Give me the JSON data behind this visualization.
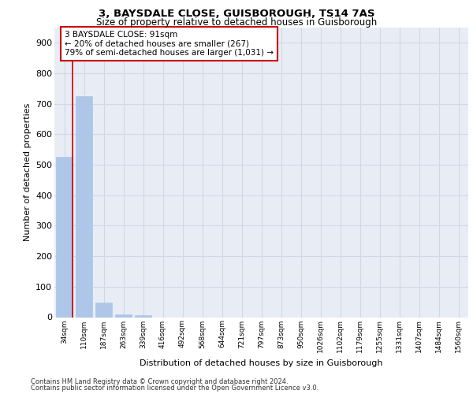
{
  "title1": "3, BAYSDALE CLOSE, GUISBOROUGH, TS14 7AS",
  "title2": "Size of property relative to detached houses in Guisborough",
  "xlabel": "Distribution of detached houses by size in Guisborough",
  "ylabel": "Number of detached properties",
  "categories": [
    "34sqm",
    "110sqm",
    "187sqm",
    "263sqm",
    "339sqm",
    "416sqm",
    "492sqm",
    "568sqm",
    "644sqm",
    "721sqm",
    "797sqm",
    "873sqm",
    "950sqm",
    "1026sqm",
    "1102sqm",
    "1179sqm",
    "1255sqm",
    "1331sqm",
    "1407sqm",
    "1484sqm",
    "1560sqm"
  ],
  "values": [
    527,
    725,
    47,
    8,
    6,
    0,
    0,
    0,
    0,
    0,
    0,
    0,
    0,
    0,
    0,
    0,
    0,
    0,
    0,
    0,
    0
  ],
  "bar_color": "#aec6e8",
  "bar_edge_color": "#aec6e8",
  "grid_color": "#d0d8e8",
  "bg_color": "#e8edf5",
  "annotation_box_color": "#cc0000",
  "subject_line_color": "#cc0000",
  "annotation_text": "3 BAYSDALE CLOSE: 91sqm\n← 20% of detached houses are smaller (267)\n79% of semi-detached houses are larger (1,031) →",
  "footer1": "Contains HM Land Registry data © Crown copyright and database right 2024.",
  "footer2": "Contains public sector information licensed under the Open Government Licence v3.0.",
  "ylim": [
    0,
    950
  ],
  "yticks": [
    0,
    100,
    200,
    300,
    400,
    500,
    600,
    700,
    800,
    900
  ]
}
